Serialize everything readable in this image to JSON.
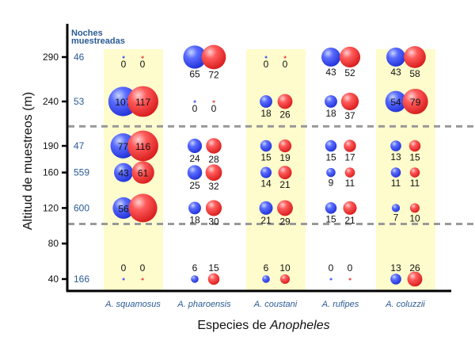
{
  "chart_data": {
    "type": "bubble",
    "xlabel": "Especies de ",
    "xlabel_italic": "Anopheles",
    "ylabel": "Altitud de muestreos (m)",
    "yticks": [
      40,
      80,
      120,
      160,
      190,
      240,
      290
    ],
    "ylim": [
      30,
      320
    ],
    "nights_header": [
      "Noches",
      "muestreadas"
    ],
    "nights": [
      {
        "altitude": 290,
        "value": "46"
      },
      {
        "altitude": 240,
        "value": "53"
      },
      {
        "altitude": 190,
        "value": "47"
      },
      {
        "altitude": 160,
        "value": "559"
      },
      {
        "altitude": 120,
        "value": "600"
      },
      {
        "altitude": 40,
        "value": "166"
      }
    ],
    "dashed_separators_altitude": [
      212,
      102
    ],
    "categories": [
      "A. squamosus",
      "A. pharoensis",
      "A. coustani",
      "A. rufipes",
      "A. coluzzii"
    ],
    "highlighted_categories": [
      "A. squamosus",
      "A. coustani",
      "A. coluzzii"
    ],
    "altitudes": [
      290,
      240,
      190,
      160,
      120,
      40
    ],
    "series": [
      {
        "color": "#3344ee",
        "values": [
          [
            0,
            107,
            77,
            43,
            56,
            0
          ],
          [
            65,
            0,
            24,
            25,
            18,
            6
          ],
          [
            0,
            18,
            15,
            14,
            21,
            6
          ],
          [
            43,
            18,
            15,
            9,
            15,
            0
          ],
          [
            43,
            54,
            13,
            11,
            7,
            13
          ]
        ]
      },
      {
        "color": "#ee2233",
        "values": [
          [
            0,
            117,
            116,
            61,
            null,
            0
          ],
          [
            72,
            0,
            28,
            32,
            30,
            15
          ],
          [
            0,
            26,
            19,
            21,
            29,
            10
          ],
          [
            52,
            37,
            17,
            11,
            21,
            0
          ],
          [
            58,
            79,
            15,
            11,
            10,
            26
          ]
        ]
      }
    ],
    "colors": {
      "highlight": "#fefccc",
      "label": "#2a5a94",
      "separator": "#999999"
    }
  }
}
